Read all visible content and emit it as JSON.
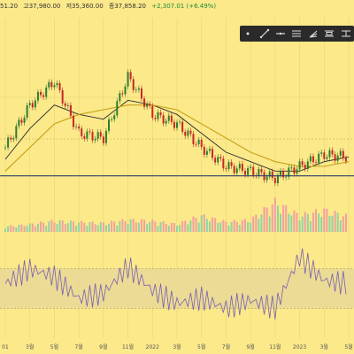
{
  "ohlc": {
    "open": "51.20",
    "high": "고37,980.00",
    "low": "저35,360.00",
    "close": "종37,858.20",
    "change": "+2,307.01 (+6.49%)"
  },
  "toolbar": {
    "icons": [
      "dot-icon",
      "trend-line-icon",
      "horizontal-line-icon",
      "channel-icon",
      "pitchfork-icon",
      "fib-icon",
      "measure-icon"
    ]
  },
  "colors": {
    "background": "#fbe98a",
    "candle_up": "#2e7d32",
    "candle_down": "#c62828",
    "ma_fast": "#2b2b2b",
    "ma_slow": "#c8a21a",
    "volume_up": "#8fd3a8",
    "volume_down": "#f2a0a0",
    "rsi_line": "#7a5fb0",
    "rsi_band": "#e8d896",
    "support_line": "#2d3f6b"
  },
  "chart_data": [
    {
      "type": "line",
      "name": "price",
      "x": [
        "01",
        "3월",
        "5월",
        "7월",
        "9월",
        "11월",
        "2022",
        "3월",
        "5월",
        "7월",
        "9월",
        "11월",
        "2023",
        "3월",
        "5월"
      ],
      "series": [
        {
          "values": [
            30,
            48,
            58,
            36,
            34,
            60,
            44,
            40,
            30,
            22,
            20,
            17,
            22,
            27,
            26
          ]
        },
        {
          "values": [
            25,
            38,
            48,
            44,
            42,
            50,
            48,
            44,
            36,
            28,
            24,
            20,
            20,
            24,
            26
          ]
        },
        {
          "values": [
            20,
            30,
            40,
            44,
            46,
            48,
            48,
            46,
            40,
            34,
            28,
            24,
            22,
            22,
            24
          ]
        }
      ],
      "horizontal_lines": [
        18
      ]
    },
    {
      "type": "bar",
      "name": "volume",
      "values": [
        10,
        14,
        20,
        18,
        16,
        22,
        20,
        14,
        30,
        18,
        22,
        55,
        30,
        40,
        28
      ]
    },
    {
      "type": "line",
      "name": "rsi",
      "values": [
        55,
        70,
        62,
        40,
        45,
        72,
        48,
        35,
        40,
        30,
        38,
        30,
        82,
        58,
        55
      ],
      "band": [
        30,
        70
      ]
    }
  ],
  "xaxis": {
    "ticks": [
      "01",
      "3월",
      "5월",
      "7월",
      "9월",
      "11월",
      "2022",
      "3월",
      "5월",
      "7월",
      "9월",
      "11월",
      "2023",
      "3월",
      "5월"
    ]
  }
}
